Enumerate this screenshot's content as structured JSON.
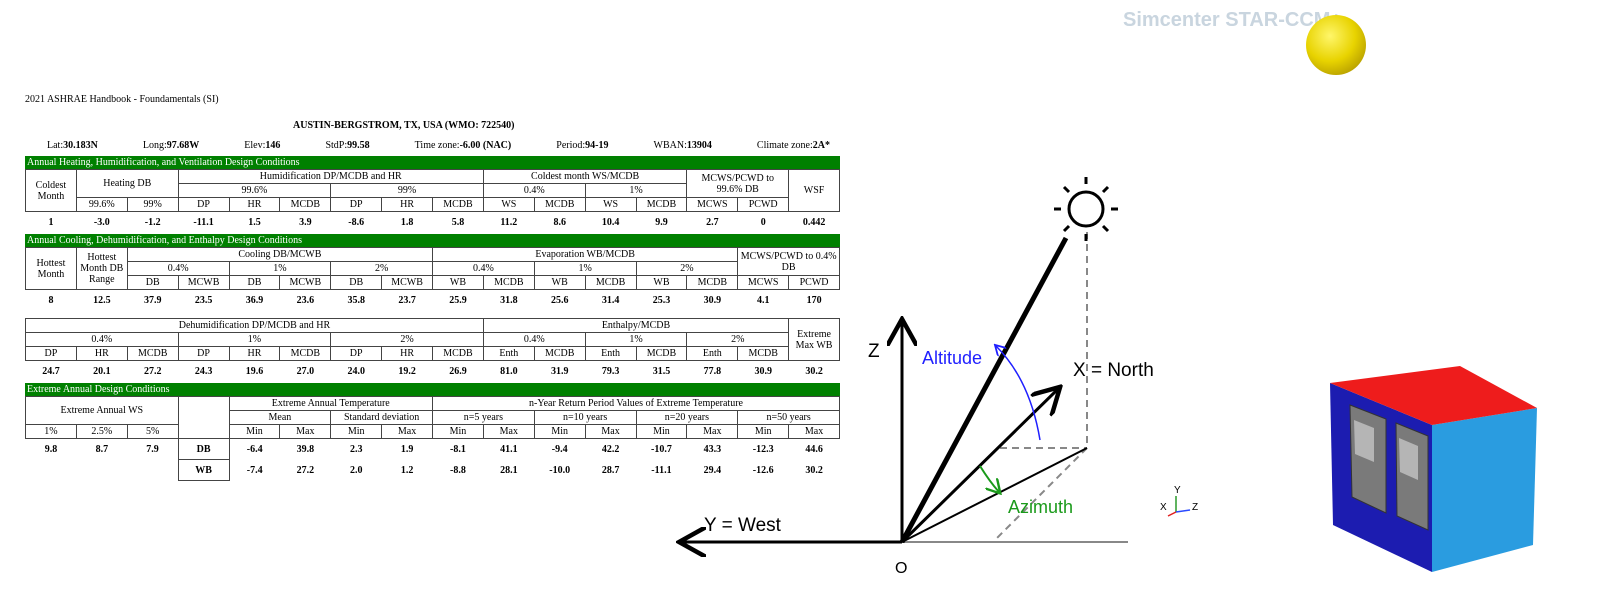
{
  "header": {
    "source": "2021 ASHRAE Handbook - Foundamentals (SI)",
    "location": "AUSTIN-BERGSTROM, TX, USA (WMO: 722540)",
    "info": [
      {
        "label": "Lat:",
        "value": "30.183N"
      },
      {
        "label": "Long:",
        "value": "97.68W"
      },
      {
        "label": "Elev:",
        "value": "146"
      },
      {
        "label": "StdP:",
        "value": "99.58"
      },
      {
        "label": "Time zone:",
        "value": "-6.00 (NAC)"
      },
      {
        "label": "Period:",
        "value": "94-19"
      },
      {
        "label": "WBAN:",
        "value": "13904"
      },
      {
        "label": "Climate zone:",
        "value": "2A*"
      }
    ]
  },
  "sections": [
    {
      "title": "Annual Heating, Humidification, and Ventilation Design Conditions",
      "tables": [
        [
          [
            "Coldest Month",
            "Heating DB",
            "Humidification DP/MCDB and HR",
            "Coldest month WS/MCDB",
            "MCWS/PCWD to 99.6% DB",
            "WSF"
          ],
          [
            "99.6%",
            "99%",
            "0.4%",
            "1%"
          ],
          [
            "99.6%",
            "99%",
            "DP",
            "HR",
            "MCDB",
            "DP",
            "HR",
            "MCDB",
            "WS",
            "MCDB",
            "WS",
            "MCDB",
            "MCWS",
            "PCWD"
          ],
          [
            "1",
            "-3.0",
            "-1.2",
            "-11.1",
            "1.5",
            "3.9",
            "-8.6",
            "1.8",
            "5.8",
            "11.2",
            "8.6",
            "10.4",
            "9.9",
            "2.7",
            "0",
            "0.442"
          ]
        ]
      ]
    },
    {
      "title": "Annual Cooling, Dehumidification, and Enthalpy Design Conditions",
      "tables": [
        [
          [
            "Hottest Month",
            "Hottest Month DB Range",
            "Cooling DB/MCWB",
            "Evaporation WB/MCDB",
            "MCWS/PCWD to 0.4% DB"
          ],
          [
            "0.4%",
            "1%",
            "2%",
            "0.4%",
            "1%",
            "2%"
          ],
          [
            "DB",
            "MCWB",
            "DB",
            "MCWB",
            "DB",
            "MCWB",
            "WB",
            "MCDB",
            "WB",
            "MCDB",
            "WB",
            "MCDB",
            "MCWS",
            "PCWD"
          ],
          [
            "8",
            "12.5",
            "37.9",
            "23.5",
            "36.9",
            "23.6",
            "35.8",
            "23.7",
            "25.9",
            "31.8",
            "25.6",
            "31.4",
            "25.3",
            "30.9",
            "4.1",
            "170"
          ]
        ],
        [
          [
            "Dehumidification DP/MCDB and HR",
            "Enthalpy/MCDB",
            "Extreme Max WB"
          ],
          [
            "0.4%",
            "1%",
            "2%",
            "0.4%",
            "1%",
            "2%"
          ],
          [
            "DP",
            "HR",
            "MCDB",
            "DP",
            "HR",
            "MCDB",
            "DP",
            "HR",
            "MCDB",
            "Enth",
            "MCDB",
            "Enth",
            "MCDB",
            "Enth",
            "MCDB"
          ],
          [
            "24.7",
            "20.1",
            "27.2",
            "24.3",
            "19.6",
            "27.0",
            "24.0",
            "19.2",
            "26.9",
            "81.0",
            "31.9",
            "79.3",
            "31.5",
            "77.8",
            "30.9",
            "30.2"
          ]
        ]
      ]
    },
    {
      "title": "Extreme Annual Design Conditions",
      "tables": [
        [
          [
            "Extreme Annual WS",
            "Extreme Annual Temperature",
            "n-Year Return Period Values of Extreme Temperature"
          ],
          [
            "Mean",
            "Standard deviation",
            "n=5 years",
            "n=10 years",
            "n=20 years",
            "n=50 years"
          ],
          [
            "1%",
            "2.5%",
            "5%",
            "Min",
            "Max",
            "Min",
            "Max",
            "Min",
            "Max",
            "Min",
            "Max",
            "Min",
            "Max",
            "Min",
            "Max"
          ],
          [
            "9.8",
            "8.7",
            "7.9",
            "DB",
            "-6.4",
            "39.8",
            "2.3",
            "1.9",
            "-8.1",
            "41.1",
            "-9.4",
            "42.2",
            "-10.7",
            "43.3",
            "-12.3",
            "44.6"
          ],
          [
            "WB",
            "-7.4",
            "27.2",
            "2.0",
            "1.2",
            "-8.8",
            "28.1",
            "-10.0",
            "28.7",
            "-11.1",
            "29.4",
            "-12.6",
            "30.2"
          ]
        ]
      ]
    }
  ],
  "diagram": {
    "z_axis": "Z",
    "x_axis": "X = North",
    "y_axis": "Y = West",
    "origin": "O",
    "altitude": "Altitude",
    "azimuth": "Azimuth"
  },
  "viewer": {
    "watermark": "Simcenter STAR-CCM+",
    "triad": {
      "y": "Y",
      "x": "X",
      "z": "Z"
    }
  }
}
